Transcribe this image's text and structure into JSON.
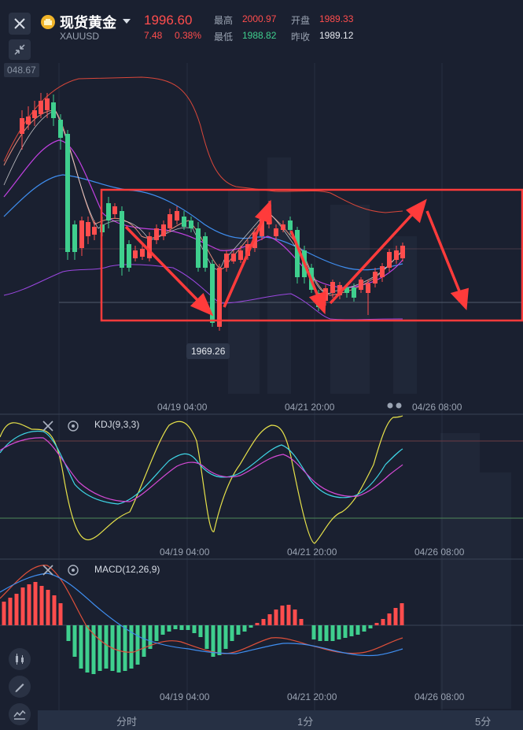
{
  "header": {
    "title": "现货黄金",
    "symbol": "XAUUSD",
    "price": "1996.60",
    "change": "7.48",
    "change_pct": "0.38%",
    "stats": {
      "high_label": "最高",
      "high": "2000.97",
      "open_label": "开盘",
      "open": "1989.33",
      "low_label": "最低",
      "low": "1988.82",
      "prev_label": "昨收",
      "prev": "1989.12"
    }
  },
  "main_chart": {
    "price_tag": "048.67",
    "low_tag": "1969.26",
    "x_labels": [
      "04/19 04:00",
      "04/21 20:00",
      "04/26 08:00"
    ]
  },
  "kdj": {
    "title": "KDJ(9,3,3)",
    "x_labels": [
      "04/19 04:00",
      "04/21 20:00",
      "04/26 08:00"
    ]
  },
  "macd": {
    "title": "MACD(12,26,9)",
    "x_labels": [
      "04/19 04:00",
      "04/21 20:00",
      "04/26 08:00"
    ]
  },
  "footer": {
    "tabs": [
      "分时",
      "1分",
      "5分"
    ]
  },
  "colors": {
    "up": "#ff4d4d",
    "down": "#3fcf8e",
    "annotation": "#ff3b3b",
    "bg": "#1a2030"
  },
  "icons": [
    "close-icon",
    "collapse-icon",
    "gold-coin-icon",
    "candle-type-icon",
    "draw-pen-icon",
    "indicator-icon",
    "settings-icon"
  ]
}
